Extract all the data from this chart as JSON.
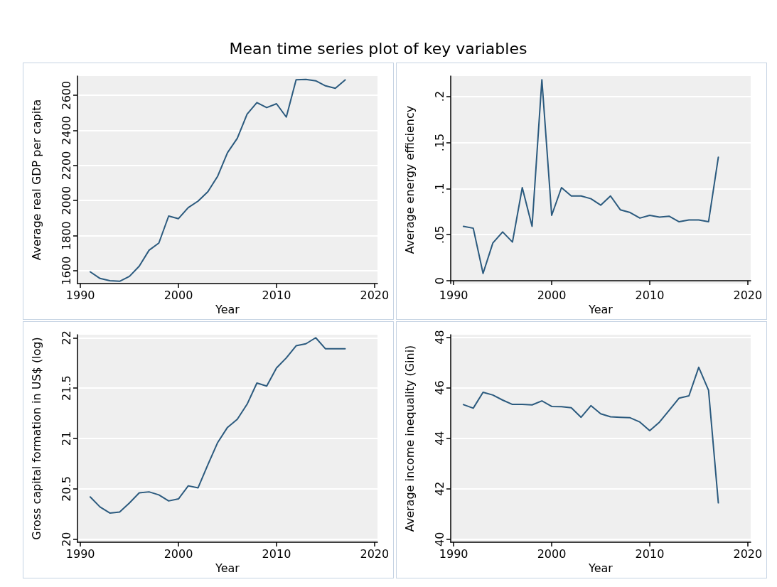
{
  "chart_data": [
    {
      "type": "line",
      "title": "Mean time series plot of key variables",
      "xlabel": "Year",
      "ylabel": "Average real GDP per capita",
      "grid": "y",
      "x": [
        1991,
        1992,
        1993,
        1994,
        1995,
        1996,
        1997,
        1998,
        1999,
        2000,
        2001,
        2002,
        2003,
        2004,
        2005,
        2006,
        2007,
        2008,
        2009,
        2010,
        2011,
        2012,
        2013,
        2014,
        2015,
        2016,
        2017
      ],
      "series": [
        {
          "color": "#2b5a7e",
          "values": [
            1594,
            1556,
            1543,
            1540,
            1568,
            1626,
            1717,
            1758,
            1912,
            1897,
            1960,
            1997,
            2051,
            2139,
            2273,
            2355,
            2493,
            2559,
            2530,
            2552,
            2476,
            2689,
            2691,
            2683,
            2654,
            2640,
            2688
          ]
        }
      ],
      "xlim": [
        1989.7,
        2020.3
      ],
      "xticks": [
        1990,
        2000,
        2010,
        2020
      ],
      "ylim": [
        1527,
        2710
      ],
      "yticks": [
        1600,
        1800,
        2000,
        2200,
        2400,
        2600
      ]
    },
    {
      "type": "line",
      "xlabel": "Year",
      "ylabel": "Average energy efficiency",
      "grid": "y",
      "x": [
        1991,
        1992,
        1993,
        1994,
        1995,
        1996,
        1997,
        1998,
        1999,
        2000,
        2001,
        2002,
        2003,
        2004,
        2005,
        2006,
        2007,
        2008,
        2009,
        2010,
        2011,
        2012,
        2013,
        2014,
        2015,
        2016,
        2017
      ],
      "series": [
        {
          "color": "#2b5a7e",
          "values": [
            0.059,
            0.057,
            0.008,
            0.041,
            0.053,
            0.042,
            0.101,
            0.059,
            0.218,
            0.071,
            0.101,
            0.092,
            0.092,
            0.089,
            0.082,
            0.092,
            0.077,
            0.074,
            0.068,
            0.071,
            0.069,
            0.07,
            0.064,
            0.066,
            0.066,
            0.064,
            0.134
          ]
        }
      ],
      "xlim": [
        1989.7,
        2020.3
      ],
      "xticks": [
        1990,
        2000,
        2010,
        2020
      ],
      "ylim": [
        -0.003,
        0.222
      ],
      "yticks": [
        0,
        {
          "value": 0.05,
          "label": ".05"
        },
        {
          "value": 0.1,
          "label": ".1"
        },
        {
          "value": 0.15,
          "label": ".15"
        },
        {
          "value": 0.2,
          "label": ".2"
        }
      ]
    },
    {
      "type": "line",
      "xlabel": "Year",
      "ylabel": "Gross capital formation in US$ (log)",
      "grid": "y",
      "x": [
        1991,
        1992,
        1993,
        1994,
        1995,
        1996,
        1997,
        1998,
        1999,
        2000,
        2001,
        2002,
        2003,
        2004,
        2005,
        2006,
        2007,
        2008,
        2009,
        2010,
        2011,
        2012,
        2013,
        2014,
        2015,
        2016,
        2017
      ],
      "series": [
        {
          "color": "#2b5a7e",
          "values": [
            20.42,
            20.32,
            20.26,
            20.27,
            20.36,
            20.46,
            20.47,
            20.44,
            20.38,
            20.4,
            20.53,
            20.51,
            20.74,
            20.96,
            21.11,
            21.19,
            21.34,
            21.55,
            21.52,
            21.7,
            21.8,
            21.92,
            21.94,
            22.0,
            21.89,
            21.89,
            21.89
          ]
        }
      ],
      "xlim": [
        1989.7,
        2020.3
      ],
      "xticks": [
        1990,
        2000,
        2010,
        2020
      ],
      "ylim": [
        19.97,
        22.03
      ],
      "yticks": [
        20,
        20.5,
        21,
        21.5,
        22
      ]
    },
    {
      "type": "line",
      "xlabel": "Year",
      "ylabel": "Average income inequality (Gini)",
      "grid": "y",
      "x": [
        1991,
        1992,
        1993,
        1994,
        1995,
        1996,
        1997,
        1998,
        1999,
        2000,
        2001,
        2002,
        2003,
        2004,
        2005,
        2006,
        2007,
        2008,
        2009,
        2010,
        2011,
        2012,
        2013,
        2014,
        2015,
        2016,
        2017
      ],
      "series": [
        {
          "color": "#2b5a7e",
          "values": [
            45.33,
            45.19,
            45.82,
            45.71,
            45.51,
            45.34,
            45.34,
            45.32,
            45.48,
            45.26,
            45.25,
            45.21,
            44.83,
            45.29,
            44.97,
            44.85,
            44.83,
            44.81,
            44.64,
            44.3,
            44.64,
            45.11,
            45.59,
            45.68,
            46.81,
            45.9,
            41.44
          ]
        }
      ],
      "xlim": [
        1989.7,
        2020.3
      ],
      "xticks": [
        1990,
        2000,
        2010,
        2020
      ],
      "ylim": [
        39.88,
        48.1
      ],
      "yticks": [
        40,
        42,
        44,
        46,
        48
      ]
    }
  ]
}
